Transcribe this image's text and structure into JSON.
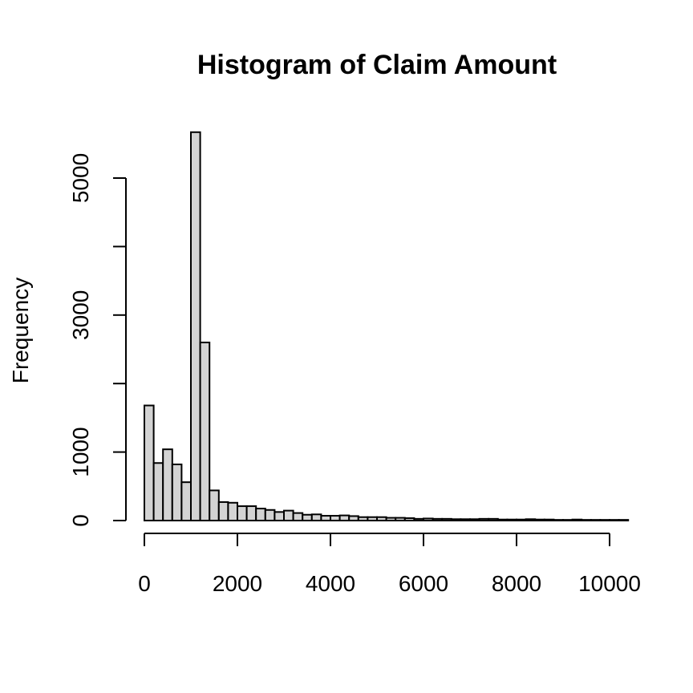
{
  "chart_data": {
    "type": "bar",
    "title": "Histogram of Claim Amount",
    "xlabel": "",
    "ylabel": "Frequency",
    "bin_width": 200,
    "bin_start": 0,
    "values": [
      1680,
      840,
      1040,
      820,
      560,
      5670,
      2600,
      440,
      270,
      260,
      210,
      210,
      175,
      155,
      125,
      145,
      110,
      85,
      90,
      70,
      70,
      75,
      65,
      50,
      50,
      50,
      40,
      40,
      35,
      25,
      30,
      25,
      25,
      20,
      20,
      20,
      25,
      25,
      15,
      15,
      15,
      20,
      15,
      15,
      10,
      10,
      15,
      10,
      10,
      10,
      10,
      10
    ],
    "xlim": [
      0,
      10400
    ],
    "ylim": [
      0,
      5670
    ],
    "xticks": [
      0,
      2000,
      4000,
      6000,
      8000,
      10000
    ],
    "xtick_labels": [
      "0",
      "2000",
      "4000",
      "6000",
      "8000",
      "10000"
    ],
    "yticks": [
      0,
      1000,
      2000,
      3000,
      4000,
      5000
    ],
    "ytick_labels": [
      "0",
      "1000",
      "",
      "3000",
      "",
      "5000"
    ],
    "grid": false,
    "bar_fill": "#d3d3d3",
    "bar_stroke": "#000000"
  }
}
